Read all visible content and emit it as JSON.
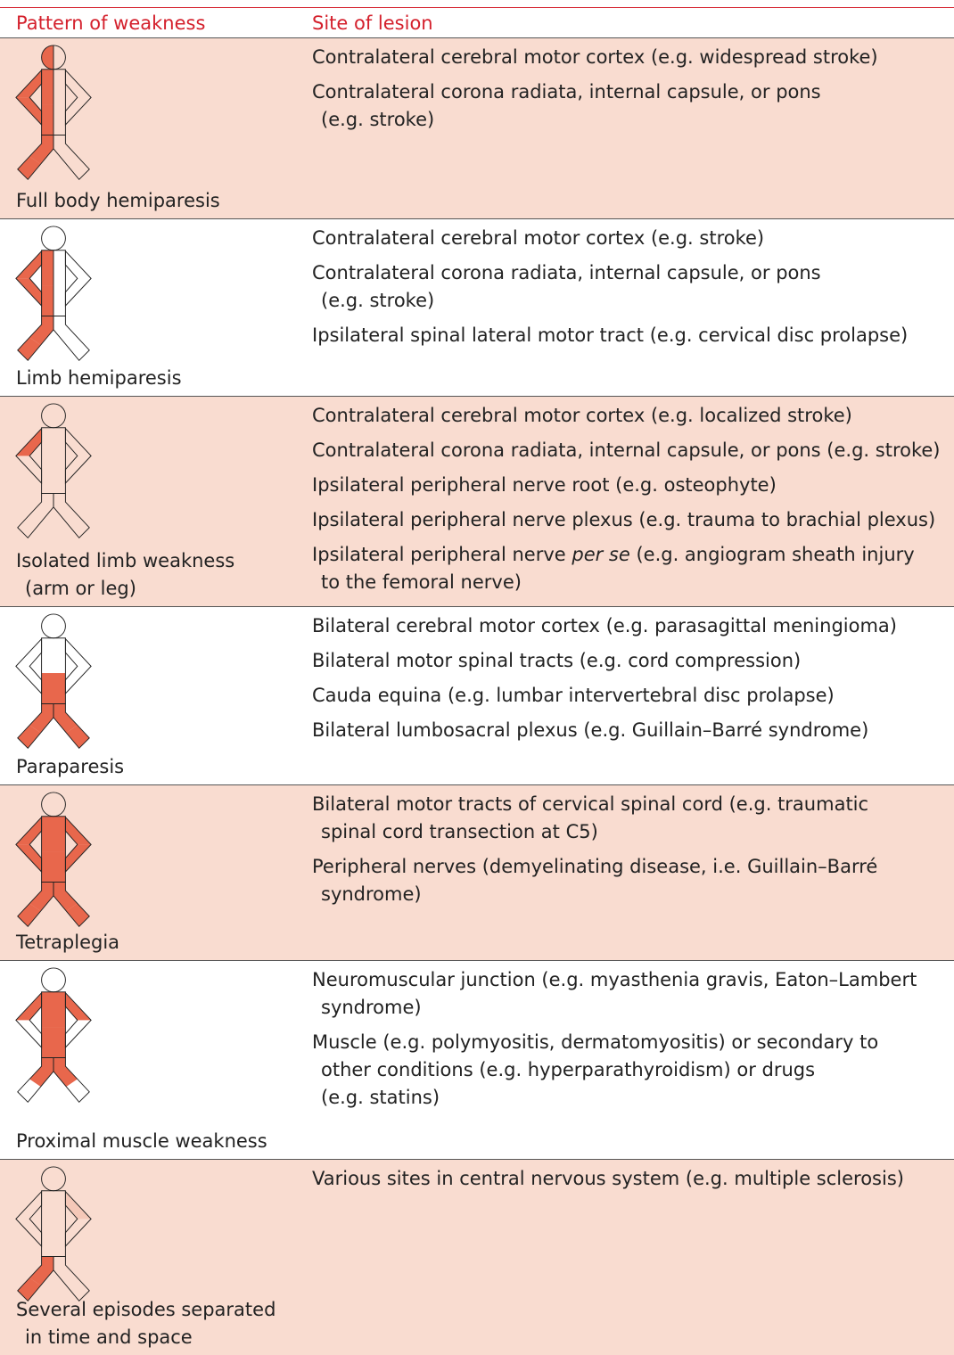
{
  "header": {
    "pattern": "Pattern of weakness",
    "site": "Site of lesion"
  },
  "rows": [
    {
      "pattern": [
        "Full body hemiparesis"
      ],
      "sites": [
        [
          "Contralateral cerebral motor cortex (e.g. widespread stroke)"
        ],
        [
          "Contralateral corona radiata, internal capsule, or pons",
          "(e.g. stroke)"
        ]
      ]
    },
    {
      "pattern": [
        "Limb hemiparesis"
      ],
      "sites": [
        [
          "Contralateral cerebral motor cortex (e.g. stroke)"
        ],
        [
          "Contralateral corona radiata, internal capsule, or pons",
          "(e.g. stroke)"
        ],
        [
          "Ipsilateral spinal lateral motor tract (e.g. cervical disc prolapse)"
        ]
      ]
    },
    {
      "pattern": [
        "Isolated limb weakness",
        "(arm or leg)"
      ],
      "sites": [
        [
          "Contralateral cerebral motor cortex (e.g. localized stroke)"
        ],
        [
          "Contralateral corona radiata, internal capsule, or pons (e.g. stroke)"
        ],
        [
          "Ipsilateral peripheral nerve root (e.g. osteophyte)"
        ],
        [
          "Ipsilateral peripheral nerve plexus (e.g. trauma to brachial plexus)"
        ],
        [
          [
            "Ipsilateral peripheral nerve ",
            {
              "text": "per se",
              "italic": true
            },
            " (e.g. angiogram sheath injury"
          ],
          "to the femoral nerve)"
        ]
      ]
    },
    {
      "pattern": [
        "Paraparesis"
      ],
      "sites": [
        [
          "Bilateral cerebral motor cortex (e.g. parasagittal meningioma)"
        ],
        [
          "Bilateral motor spinal tracts (e.g. cord compression)"
        ],
        [
          "Cauda equina (e.g. lumbar intervertebral disc prolapse)"
        ],
        [
          "Bilateral lumbosacral plexus (e.g. Guillain–Barré syndrome)"
        ]
      ]
    },
    {
      "pattern": [
        "Tetraplegia"
      ],
      "sites": [
        [
          "Bilateral motor tracts of cervical spinal cord (e.g. traumatic",
          "spinal cord transection at C5)"
        ],
        [
          "Peripheral nerves (demyelinating disease, i.e. Guillain–Barré",
          "syndrome)"
        ]
      ]
    },
    {
      "pattern": [
        "Proximal muscle weakness"
      ],
      "sites": [
        [
          "Neuromuscular junction (e.g. myasthenia gravis, Eaton–Lambert",
          "syndrome)"
        ],
        [
          "Muscle (e.g. polymyositis, dermatomyositis) or secondary to",
          "other conditions (e.g. hyperparathyroidism) or drugs",
          "(e.g. statins)"
        ]
      ]
    },
    {
      "pattern": [
        "Several episodes separated",
        "in time and space"
      ],
      "sites": [
        [
          "Various sites in central nervous system (e.g. multiple sclerosis)"
        ]
      ]
    }
  ]
}
